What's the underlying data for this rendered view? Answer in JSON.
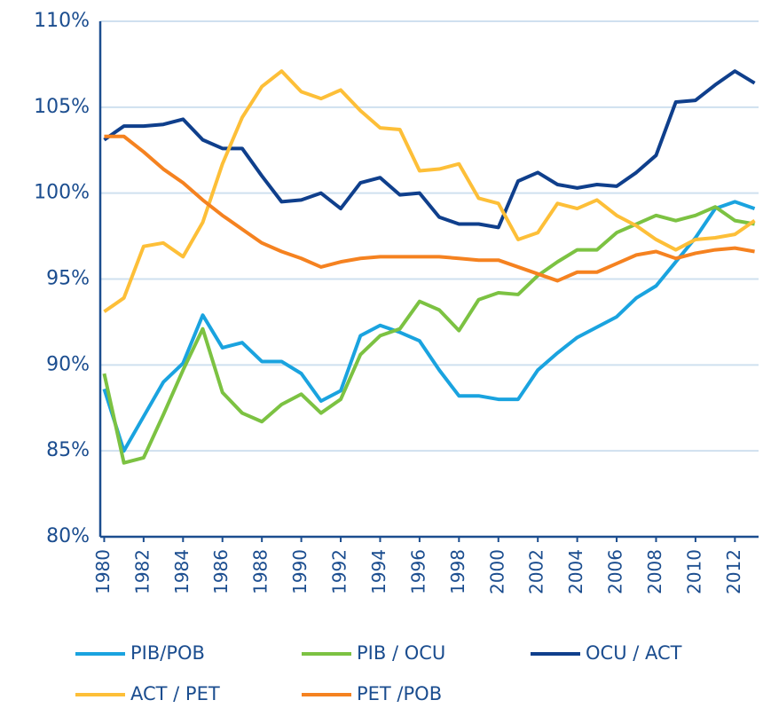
{
  "chart_data": {
    "type": "line",
    "x": [
      1980,
      1981,
      1982,
      1983,
      1984,
      1985,
      1986,
      1987,
      1988,
      1989,
      1990,
      1991,
      1992,
      1993,
      1994,
      1995,
      1996,
      1997,
      1998,
      1999,
      2000,
      2001,
      2002,
      2003,
      2004,
      2005,
      2006,
      2007,
      2008,
      2009,
      2010,
      2011,
      2012,
      2013
    ],
    "xlim": [
      1979.8,
      2013.2
    ],
    "xticks": [
      1980,
      1982,
      1984,
      1986,
      1988,
      1990,
      1992,
      1994,
      1996,
      1998,
      2000,
      2002,
      2004,
      2006,
      2008,
      2010,
      2012
    ],
    "ylim": [
      80,
      110
    ],
    "yticks": [
      {
        "value": 80,
        "label": "80%"
      },
      {
        "value": 85,
        "label": "85%"
      },
      {
        "value": 90,
        "label": "90%"
      },
      {
        "value": 95,
        "label": "95%"
      },
      {
        "value": 100,
        "label": "100%"
      },
      {
        "value": 105,
        "label": "105%"
      },
      {
        "value": 110,
        "label": "110%"
      }
    ],
    "grid": true,
    "legend": "bottom",
    "series": [
      {
        "name": "PIB/POB",
        "color": "#1aa3df",
        "values": [
          88.6,
          85.0,
          87.0,
          89.0,
          90.1,
          92.9,
          91.0,
          91.3,
          90.2,
          90.2,
          89.5,
          87.9,
          88.5,
          91.7,
          92.3,
          91.9,
          91.4,
          89.7,
          88.2,
          88.2,
          88.0,
          88.0,
          89.7,
          90.7,
          91.6,
          92.2,
          92.8,
          93.9,
          94.6,
          96.0,
          97.4,
          99.1,
          99.5,
          99.1
        ]
      },
      {
        "name": "PIB / OCU",
        "color": "#7cc242",
        "values": [
          89.5,
          84.3,
          84.6,
          87.1,
          89.7,
          92.1,
          88.4,
          87.2,
          86.7,
          87.7,
          88.3,
          87.2,
          88.0,
          90.6,
          91.7,
          92.1,
          93.7,
          93.2,
          92.0,
          93.8,
          94.2,
          94.1,
          95.2,
          96.0,
          96.7,
          96.7,
          97.7,
          98.2,
          98.7,
          98.4,
          98.7,
          99.2,
          98.4,
          98.2
        ]
      },
      {
        "name": "OCU / ACT",
        "color": "#0f3f8c",
        "values": [
          103.1,
          103.9,
          103.9,
          104.0,
          104.3,
          103.1,
          102.6,
          102.6,
          101.0,
          99.5,
          99.6,
          100.0,
          99.1,
          100.6,
          100.9,
          99.9,
          100.0,
          98.6,
          98.2,
          98.2,
          98.0,
          100.7,
          101.2,
          100.5,
          100.3,
          100.5,
          100.4,
          101.2,
          102.2,
          105.3,
          105.4,
          106.3,
          107.1,
          106.4
        ]
      },
      {
        "name": "ACT / PET",
        "color": "#fdbf38",
        "values": [
          93.1,
          93.9,
          96.9,
          97.1,
          96.3,
          98.3,
          101.7,
          104.4,
          106.2,
          107.1,
          105.9,
          105.5,
          106.0,
          104.8,
          103.8,
          103.7,
          101.3,
          101.4,
          101.7,
          99.7,
          99.4,
          97.3,
          97.7,
          99.4,
          99.1,
          99.6,
          98.7,
          98.1,
          97.3,
          96.7,
          97.3,
          97.4,
          97.6,
          98.4
        ]
      },
      {
        "name": "PET /POB",
        "color": "#f58220",
        "values": [
          103.3,
          103.3,
          102.4,
          101.4,
          100.6,
          99.6,
          98.7,
          97.9,
          97.1,
          96.6,
          96.2,
          95.7,
          96.0,
          96.2,
          96.3,
          96.3,
          96.3,
          96.3,
          96.2,
          96.1,
          96.1,
          95.7,
          95.3,
          94.9,
          95.4,
          95.4,
          95.9,
          96.4,
          96.6,
          96.2,
          96.5,
          96.7,
          96.8,
          96.6
        ]
      }
    ]
  }
}
